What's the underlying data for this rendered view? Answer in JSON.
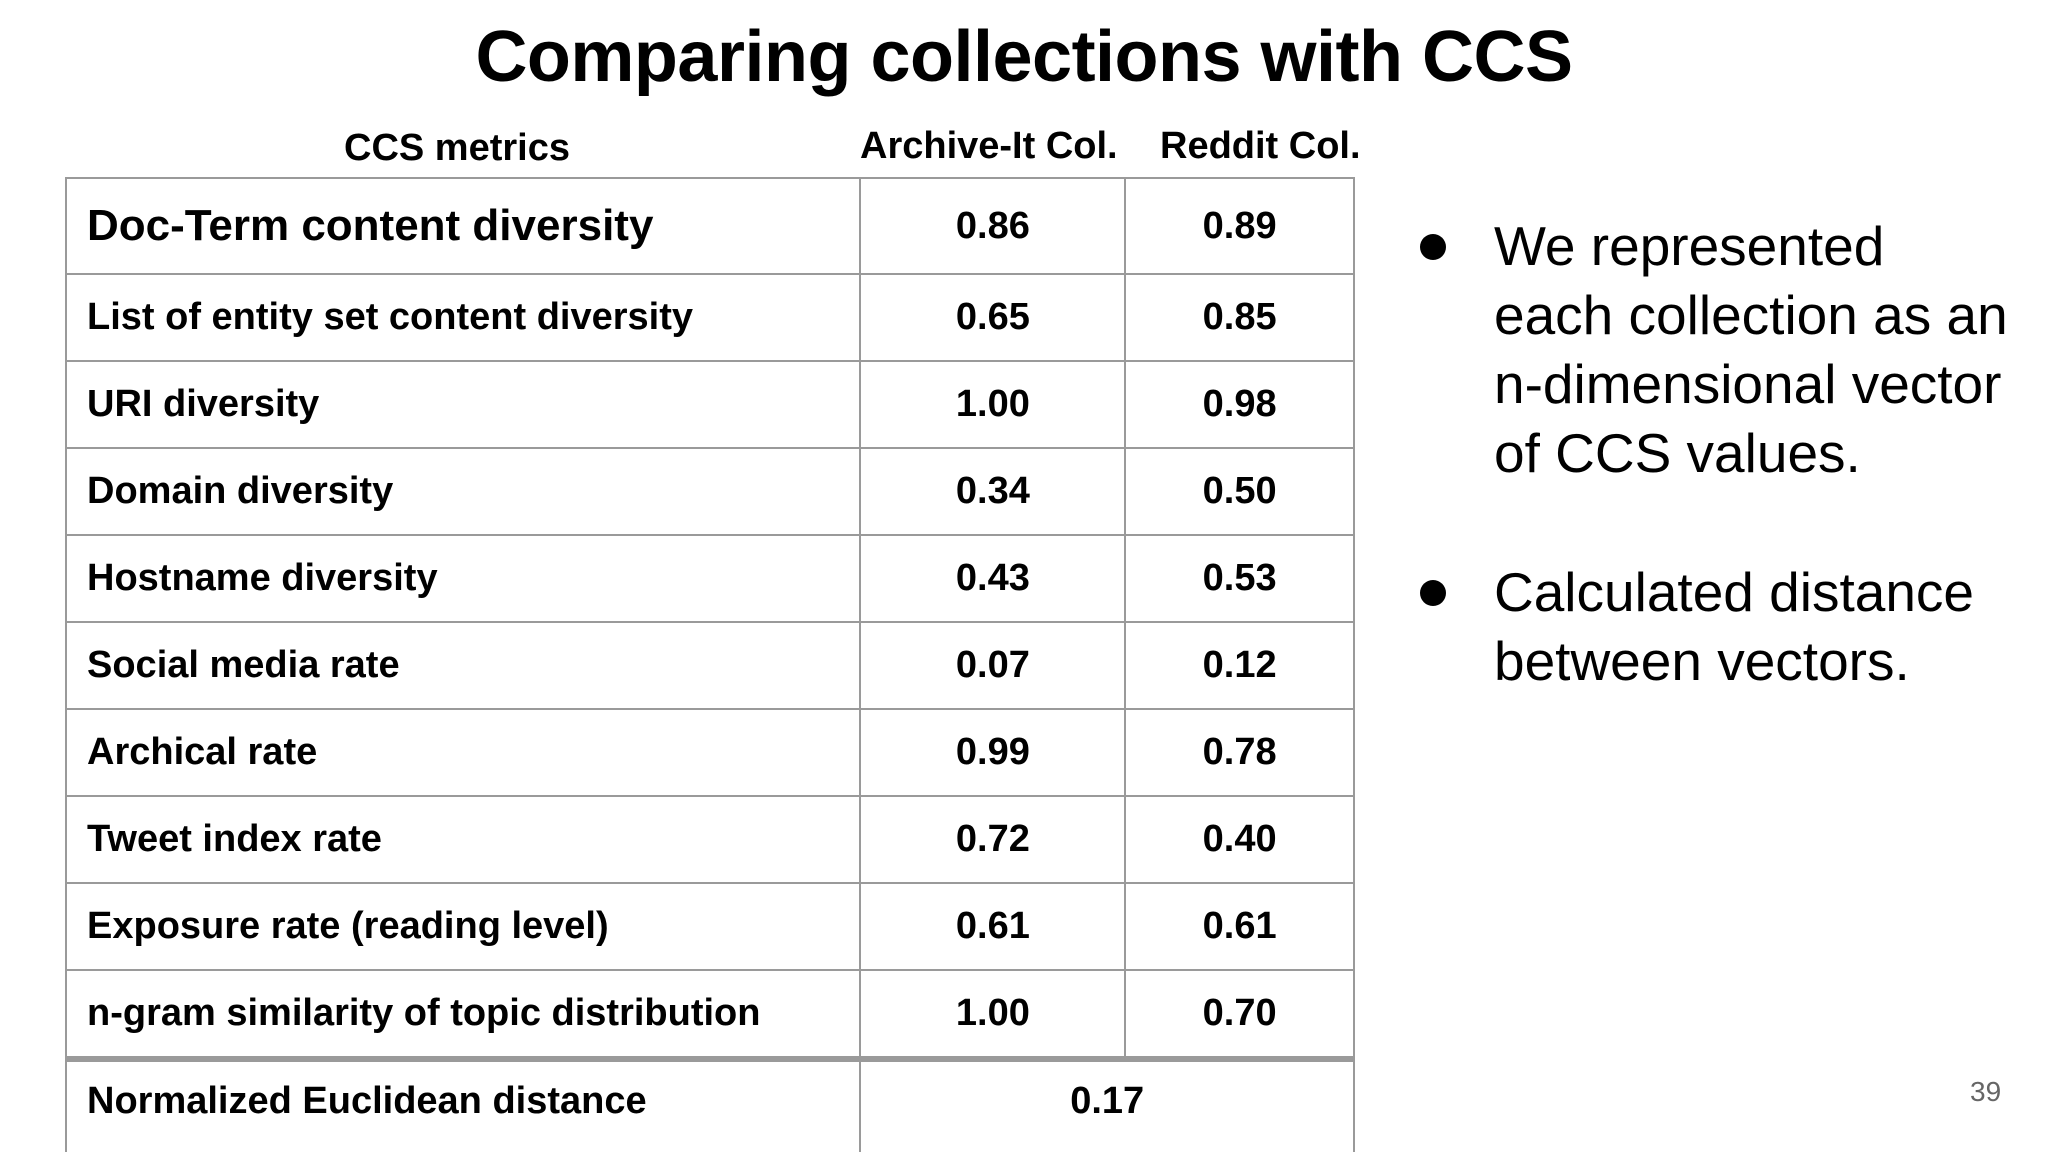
{
  "slide": {
    "title": "Comparing collections with CCS",
    "page_number": "39"
  },
  "table": {
    "headers": {
      "metric": "CCS metrics",
      "archive": "Archive-It Col.",
      "reddit": "Reddit Col."
    },
    "rows": [
      {
        "metric": "Doc-Term content diversity",
        "archive": "0.86",
        "reddit": "0.89"
      },
      {
        "metric": "List of entity set content diversity",
        "archive": "0.65",
        "reddit": "0.85"
      },
      {
        "metric": "URI diversity",
        "archive": "1.00",
        "reddit": "0.98"
      },
      {
        "metric": "Domain diversity",
        "archive": "0.34",
        "reddit": "0.50"
      },
      {
        "metric": "Hostname diversity",
        "archive": "0.43",
        "reddit": "0.53"
      },
      {
        "metric": "Social media rate",
        "archive": "0.07",
        "reddit": "0.12"
      },
      {
        "metric": "Archical rate",
        "archive": "0.99",
        "reddit": "0.78"
      },
      {
        "metric": "Tweet index rate",
        "archive": "0.72",
        "reddit": "0.40"
      },
      {
        "metric": "Exposure rate (reading level)",
        "archive": "0.61",
        "reddit": "0.61"
      },
      {
        "metric": "n-gram similarity of topic distribution",
        "archive": "1.00",
        "reddit": "0.70"
      }
    ],
    "total": {
      "metric": "Normalized Euclidean distance",
      "value": "0.17"
    }
  },
  "bullets": [
    {
      "lines": [
        "We represented",
        "each collection as an",
        "n-dimensional vector",
        "of CCS values."
      ]
    },
    {
      "lines": [
        "Calculated distance",
        "between vectors."
      ]
    }
  ]
}
